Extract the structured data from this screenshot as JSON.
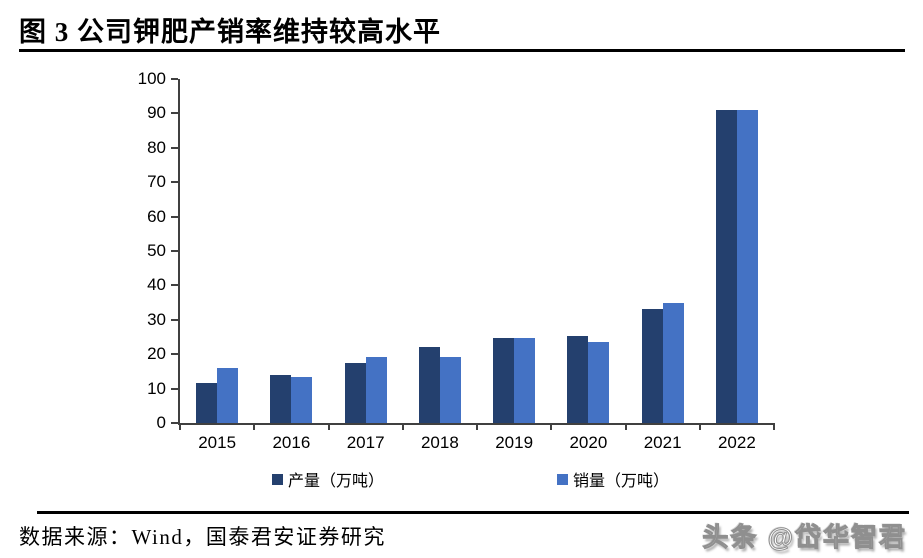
{
  "header": {
    "title": "图 3 公司钾肥产销率维持较高水平"
  },
  "chart_data": {
    "type": "bar",
    "title": "公司钾肥产销率维持较高水平",
    "categories": [
      "2015",
      "2016",
      "2017",
      "2018",
      "2019",
      "2020",
      "2021",
      "2022"
    ],
    "series": [
      {
        "name": "产量（万吨）",
        "color": "#24406E",
        "values": [
          11.7,
          14.0,
          17.4,
          22.0,
          24.6,
          25.3,
          33.0,
          91.0
        ]
      },
      {
        "name": "销量（万吨）",
        "color": "#4472C4",
        "values": [
          16.0,
          13.5,
          19.2,
          19.2,
          24.6,
          23.6,
          35.0,
          91.0
        ]
      }
    ],
    "xlabel": "",
    "ylabel": "",
    "ylim": [
      0,
      100
    ],
    "ytick_step": 10,
    "grid": false,
    "legend_position": "bottom",
    "axis_color": "#404040"
  },
  "footer": {
    "source": "数据来源：Wind，国泰君安证券研究",
    "watermark": "头条 @岱华智君"
  }
}
